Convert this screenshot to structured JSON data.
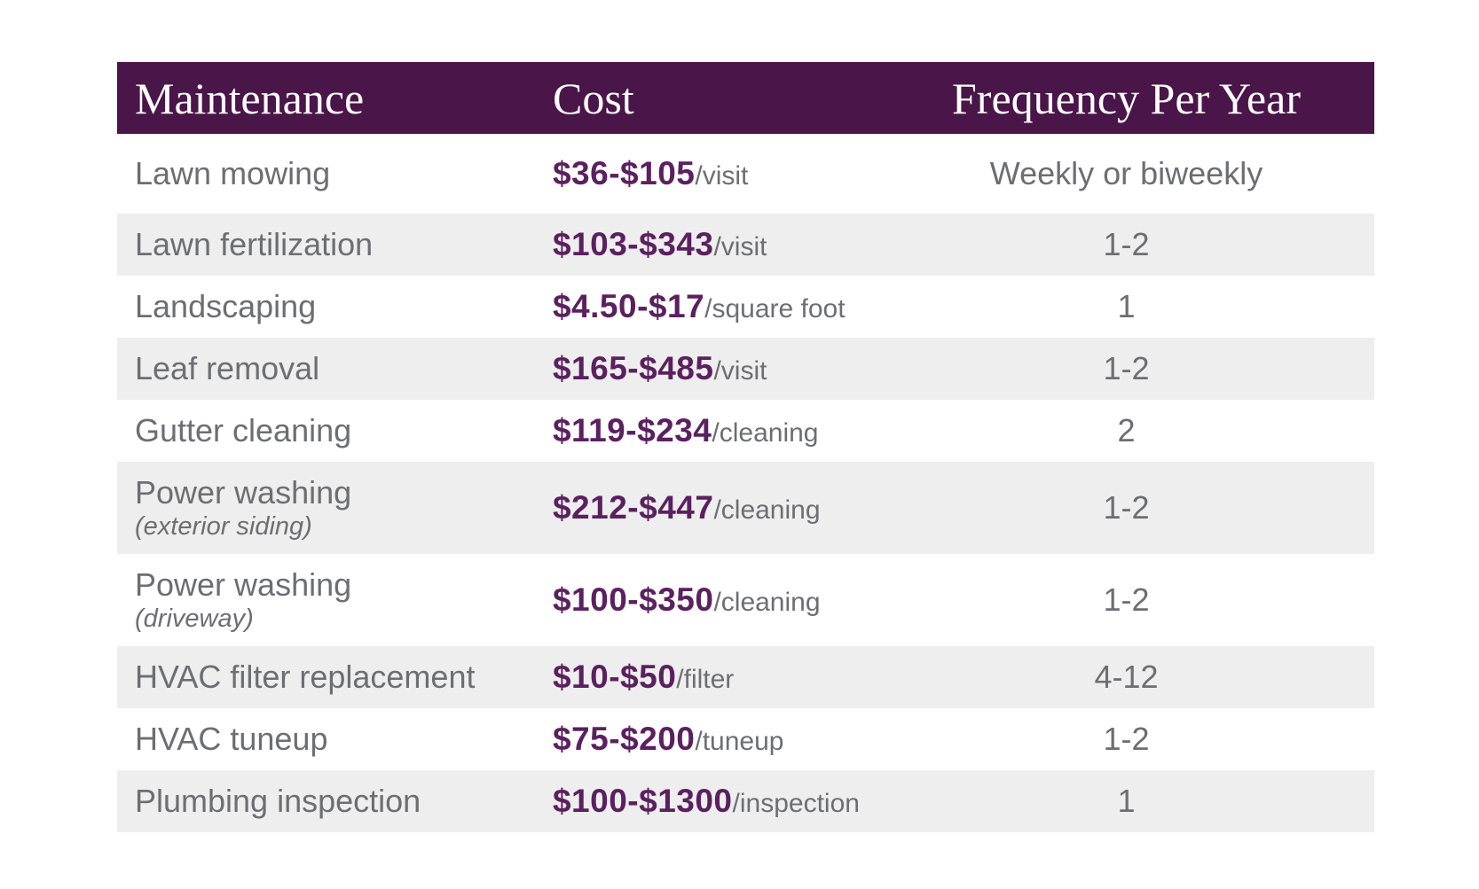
{
  "table": {
    "columns": [
      "Maintenance",
      "Cost",
      "Frequency Per Year"
    ],
    "rows": [
      {
        "maintenance": "Lawn mowing",
        "note": "",
        "price": "$36-$105",
        "unit": "/visit",
        "frequency": "Weekly or biweekly"
      },
      {
        "maintenance": "Lawn fertilization",
        "note": "",
        "price": "$103-$343",
        "unit": "/visit",
        "frequency": "1-2"
      },
      {
        "maintenance": "Landscaping",
        "note": "",
        "price": "$4.50-$17",
        "unit": "/square foot",
        "frequency": "1"
      },
      {
        "maintenance": "Leaf removal",
        "note": "",
        "price": "$165-$485",
        "unit": "/visit",
        "frequency": "1-2"
      },
      {
        "maintenance": "Gutter cleaning",
        "note": "",
        "price": "$119-$234",
        "unit": "/cleaning",
        "frequency": "2"
      },
      {
        "maintenance": "Power washing",
        "note": "(exterior siding)",
        "price": "$212-$447",
        "unit": "/cleaning",
        "frequency": "1-2"
      },
      {
        "maintenance": "Power washing",
        "note": "(driveway)",
        "price": "$100-$350",
        "unit": "/cleaning",
        "frequency": "1-2"
      },
      {
        "maintenance": "HVAC filter replacement",
        "note": "",
        "price": "$10-$50",
        "unit": "/filter",
        "frequency": "4-12"
      },
      {
        "maintenance": "HVAC tuneup",
        "note": "",
        "price": "$75-$200",
        "unit": "/tuneup",
        "frequency": "1-2"
      },
      {
        "maintenance": "Plumbing inspection",
        "note": "",
        "price": "$100-$1300",
        "unit": "/inspection",
        "frequency": "1"
      }
    ]
  },
  "colors": {
    "header_bg": "#4a1548",
    "header_text": "#fdfcfd",
    "price_text": "#5b2060",
    "body_text": "#6d6e71",
    "row_alt_bg": "#eeeeee",
    "page_bg": "#ffffff"
  },
  "chart_data": {
    "type": "table",
    "title": "",
    "columns": [
      "Maintenance",
      "Cost",
      "Frequency Per Year"
    ],
    "rows": [
      [
        "Lawn mowing",
        "$36-$105/visit",
        "Weekly or biweekly"
      ],
      [
        "Lawn fertilization",
        "$103-$343/visit",
        "1-2"
      ],
      [
        "Landscaping",
        "$4.50-$17/square foot",
        "1"
      ],
      [
        "Leaf removal",
        "$165-$485/visit",
        "1-2"
      ],
      [
        "Gutter cleaning",
        "$119-$234/cleaning",
        "2"
      ],
      [
        "Power washing (exterior siding)",
        "$212-$447/cleaning",
        "1-2"
      ],
      [
        "Power washing (driveway)",
        "$100-$350/cleaning",
        "1-2"
      ],
      [
        "HVAC filter replacement",
        "$10-$50/filter",
        "4-12"
      ],
      [
        "HVAC tuneup",
        "$75-$200/tuneup",
        "1-2"
      ],
      [
        "Plumbing inspection",
        "$100-$1300/inspection",
        "1"
      ]
    ],
    "layout": {
      "header_fill": "#4a1548",
      "alternating_rows": true,
      "grid": false
    }
  }
}
